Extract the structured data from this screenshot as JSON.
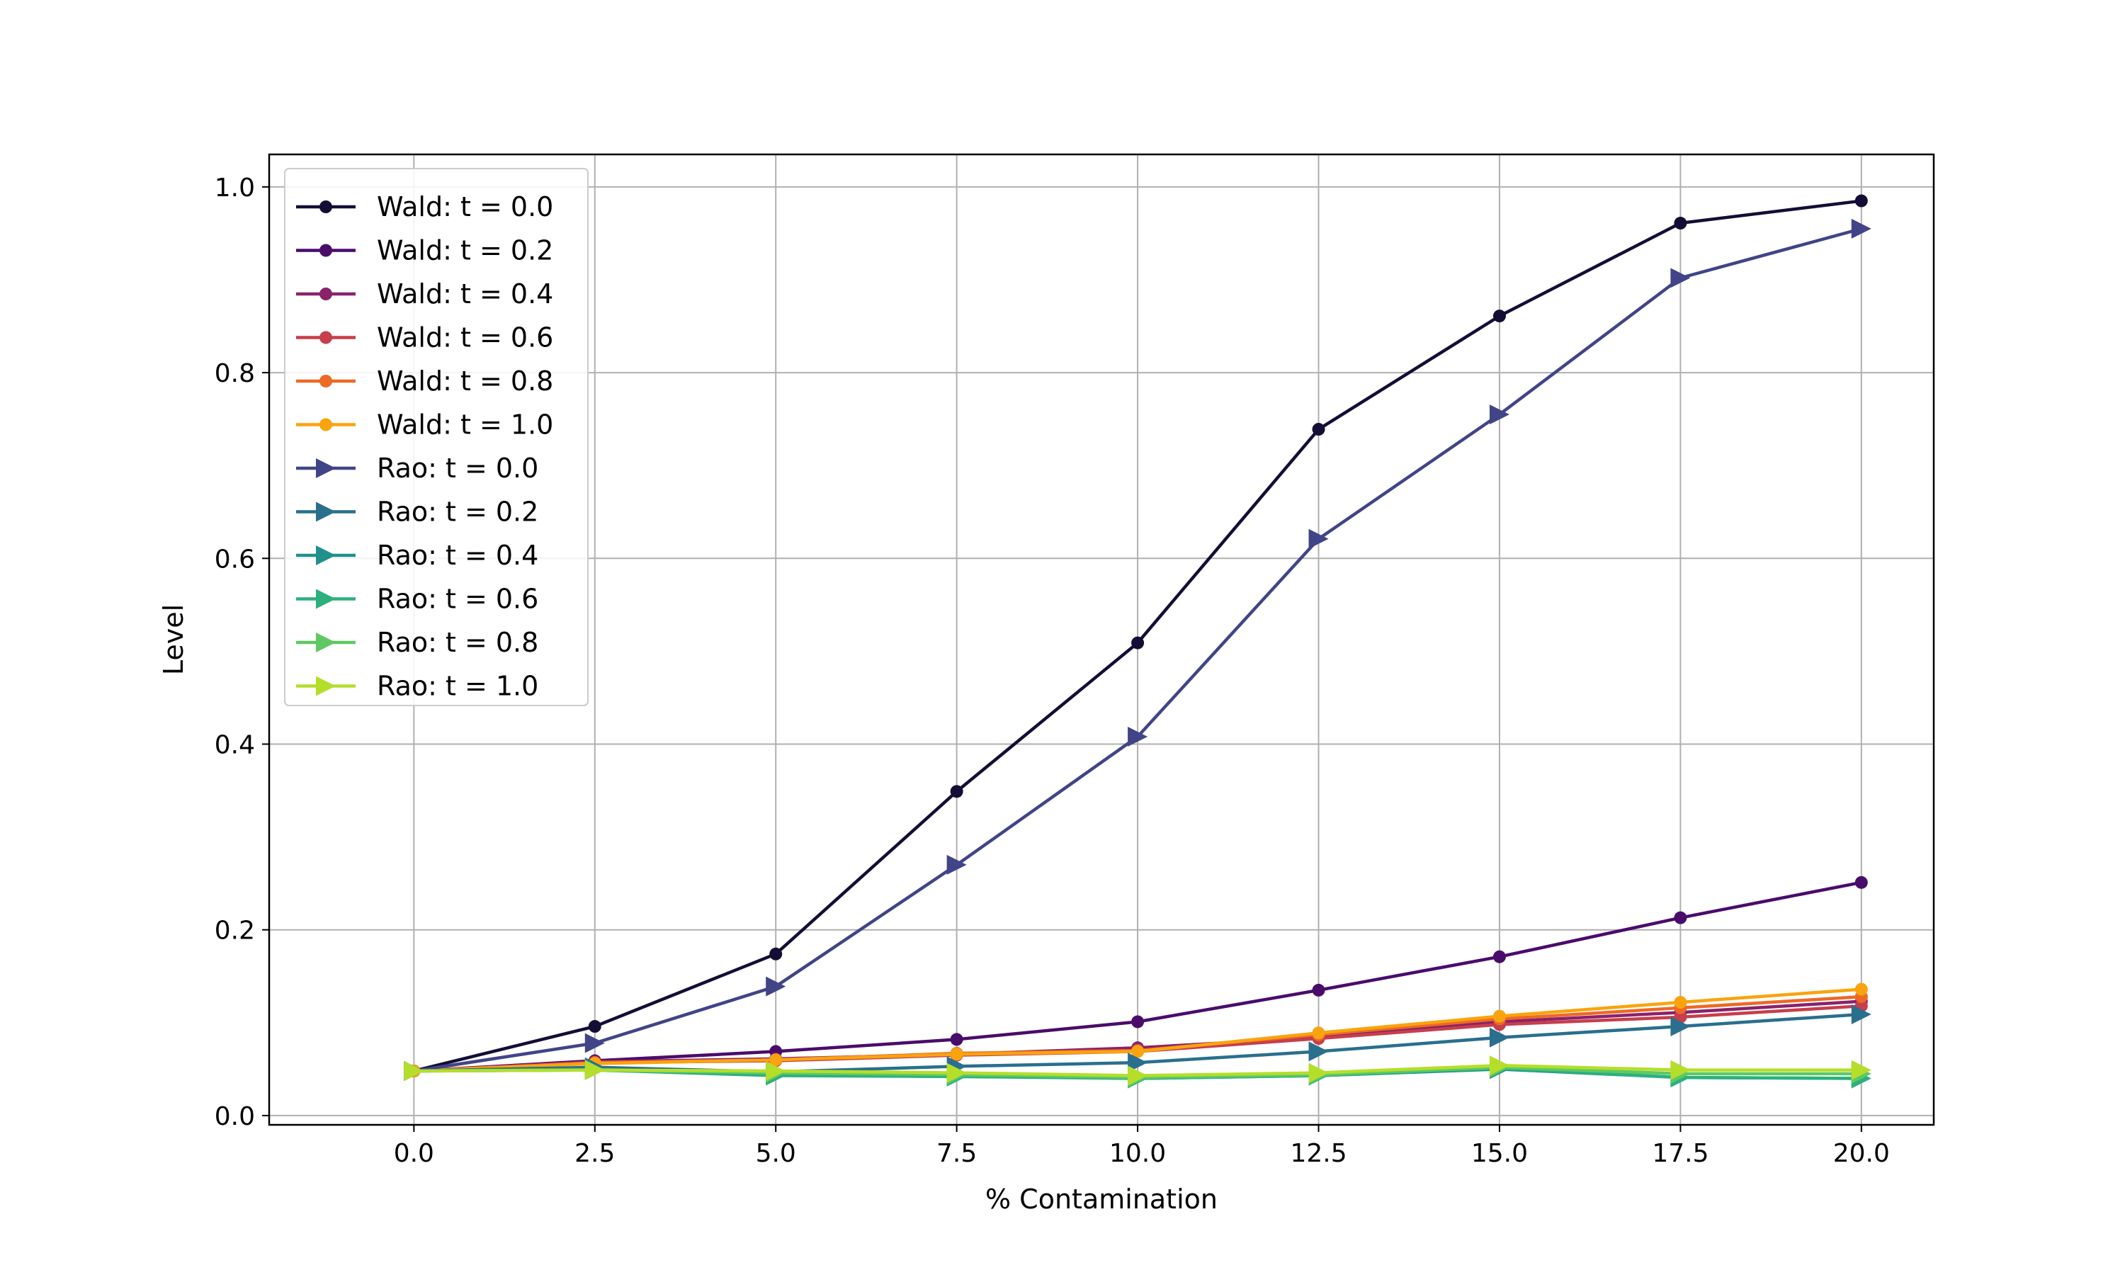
{
  "chart_data": {
    "type": "line",
    "xlabel": "% Contamination",
    "ylabel": "Level",
    "xlim": [
      -2.0,
      21.0
    ],
    "ylim": [
      -0.01,
      1.035
    ],
    "xticks": [
      0.0,
      2.5,
      5.0,
      7.5,
      10.0,
      12.5,
      15.0,
      17.5,
      20.0
    ],
    "xtick_labels": [
      "0.0",
      "2.5",
      "5.0",
      "7.5",
      "10.0",
      "12.5",
      "15.0",
      "17.5",
      "20.0"
    ],
    "yticks": [
      0.0,
      0.2,
      0.4,
      0.6,
      0.8,
      1.0
    ],
    "ytick_labels": [
      "0.0",
      "0.2",
      "0.4",
      "0.6",
      "0.8",
      "1.0"
    ],
    "grid": true,
    "legend_position": "top-left",
    "x": [
      0.0,
      2.5,
      5.0,
      7.5,
      10.0,
      12.5,
      15.0,
      17.5,
      20.0
    ],
    "series": [
      {
        "name": "Wald: t = 0.0",
        "marker": "circle",
        "color": "#140e36",
        "values": [
          0.048,
          0.096,
          0.174,
          0.349,
          0.509,
          0.739,
          0.861,
          0.961,
          0.985
        ]
      },
      {
        "name": "Wald: t = 0.2",
        "marker": "circle",
        "color": "#4a0c6b",
        "values": [
          0.048,
          0.059,
          0.069,
          0.082,
          0.101,
          0.135,
          0.171,
          0.213,
          0.251
        ]
      },
      {
        "name": "Wald: t = 0.4",
        "marker": "circle",
        "color": "#8a226a",
        "values": [
          0.048,
          0.058,
          0.061,
          0.066,
          0.073,
          0.084,
          0.101,
          0.111,
          0.123
        ]
      },
      {
        "name": "Wald: t = 0.6",
        "marker": "circle",
        "color": "#c73e4c",
        "values": [
          0.048,
          0.057,
          0.059,
          0.065,
          0.069,
          0.083,
          0.098,
          0.106,
          0.118
        ]
      },
      {
        "name": "Wald: t = 0.8",
        "marker": "circle",
        "color": "#ed6925",
        "values": [
          0.048,
          0.057,
          0.06,
          0.067,
          0.07,
          0.087,
          0.104,
          0.116,
          0.128
        ]
      },
      {
        "name": "Wald: t = 1.0",
        "marker": "circle",
        "color": "#f9a40e",
        "values": [
          0.048,
          0.056,
          0.06,
          0.066,
          0.069,
          0.089,
          0.107,
          0.122,
          0.136
        ]
      },
      {
        "name": "Rao: t = 0.0",
        "marker": "triangle-right",
        "color": "#414487",
        "values": [
          0.048,
          0.078,
          0.139,
          0.27,
          0.408,
          0.621,
          0.755,
          0.902,
          0.955
        ]
      },
      {
        "name": "Rao: t = 0.2",
        "marker": "triangle-right",
        "color": "#2a6f8e",
        "values": [
          0.048,
          0.052,
          0.047,
          0.053,
          0.057,
          0.069,
          0.084,
          0.096,
          0.109
        ]
      },
      {
        "name": "Rao: t = 0.4",
        "marker": "triangle-right",
        "color": "#21908c",
        "values": [
          0.048,
          0.05,
          0.044,
          0.043,
          0.04,
          0.043,
          0.05,
          0.041,
          0.04
        ]
      },
      {
        "name": "Rao: t = 0.6",
        "marker": "triangle-right",
        "color": "#2cb17e",
        "values": [
          0.048,
          0.049,
          0.043,
          0.042,
          0.04,
          0.043,
          0.051,
          0.041,
          0.04
        ]
      },
      {
        "name": "Rao: t = 0.8",
        "marker": "triangle-right",
        "color": "#5ec962",
        "values": [
          0.048,
          0.049,
          0.046,
          0.044,
          0.041,
          0.044,
          0.052,
          0.045,
          0.045
        ]
      },
      {
        "name": "Rao: t = 1.0",
        "marker": "triangle-right",
        "color": "#b5de2b",
        "values": [
          0.048,
          0.049,
          0.048,
          0.046,
          0.043,
          0.046,
          0.054,
          0.049,
          0.049
        ]
      }
    ]
  }
}
